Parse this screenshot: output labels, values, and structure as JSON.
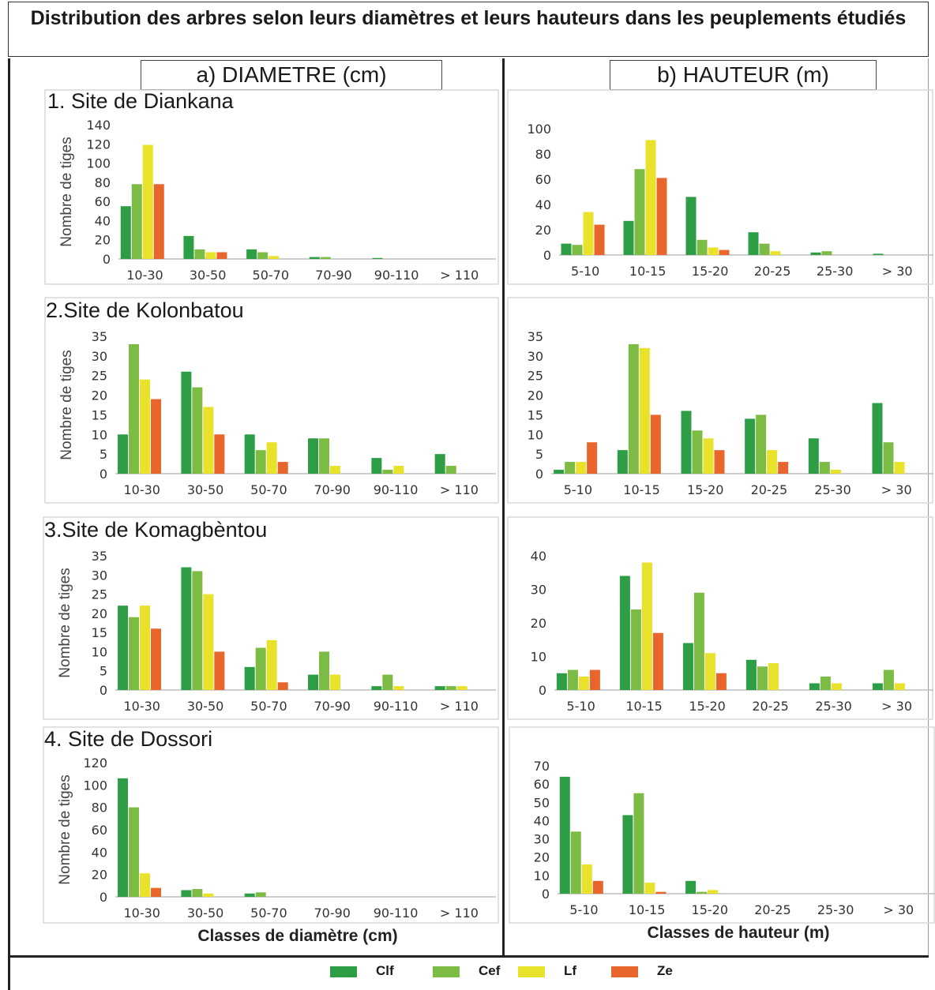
{
  "title": "Distribution des arbres selon leurs diamètres et leurs hauteurs dans les peuplements étudiés",
  "columns": {
    "diameter": "a) DIAMETRE (cm)",
    "height": "b) HAUTEUR (m)"
  },
  "sites": [
    "1. Site de Diankana",
    "2.Site de Kolonbatou",
    "3.Site de Komagbèntou",
    "4. Site de Dossori"
  ],
  "ylabel": "Nombre de tiges",
  "xlabels": {
    "diameter": "Classes de diamètre (cm)",
    "height": "Classes de hauteur (m)"
  },
  "colors": {
    "Clf": "#2e9e46",
    "Cef": "#7cbc45",
    "Lf": "#e8e22a",
    "Ze": "#e8652c"
  },
  "legend": [
    "Clf",
    "Cef",
    "Lf",
    "Ze"
  ],
  "chart_data": [
    {
      "type": "bar",
      "site": "1. Site de Diankana",
      "variable": "diameter",
      "categories": [
        "10-30",
        "30-50",
        "50-70",
        "70-90",
        "90-110",
        "> 110"
      ],
      "ylim": [
        0,
        140
      ],
      "yticks": [
        0,
        20,
        40,
        60,
        80,
        100,
        120,
        140
      ],
      "series": [
        {
          "name": "Clf",
          "values": [
            55,
            24,
            10,
            2,
            1,
            0
          ]
        },
        {
          "name": "Cef",
          "values": [
            78,
            10,
            7,
            2,
            0,
            0
          ]
        },
        {
          "name": "Lf",
          "values": [
            119,
            7,
            3,
            0,
            0,
            0
          ]
        },
        {
          "name": "Ze",
          "values": [
            78,
            7,
            0,
            0,
            0,
            0
          ]
        }
      ]
    },
    {
      "type": "bar",
      "site": "1. Site de Diankana",
      "variable": "height",
      "categories": [
        "5-10",
        "10-15",
        "15-20",
        "20-25",
        "25-30",
        "> 30"
      ],
      "ylim": [
        0,
        100
      ],
      "yticks": [
        0,
        20,
        40,
        60,
        80,
        100
      ],
      "series": [
        {
          "name": "Clf",
          "values": [
            9,
            27,
            46,
            18,
            2,
            1
          ]
        },
        {
          "name": "Cef",
          "values": [
            8,
            68,
            12,
            9,
            3,
            0
          ]
        },
        {
          "name": "Lf",
          "values": [
            34,
            91,
            6,
            3,
            0,
            0
          ]
        },
        {
          "name": "Ze",
          "values": [
            24,
            61,
            4,
            0,
            0,
            0
          ]
        }
      ]
    },
    {
      "type": "bar",
      "site": "2.Site de Kolonbatou",
      "variable": "diameter",
      "categories": [
        "10-30",
        "30-50",
        "50-70",
        "70-90",
        "90-110",
        "> 110"
      ],
      "ylim": [
        0,
        35
      ],
      "yticks": [
        0,
        5,
        10,
        15,
        20,
        25,
        30,
        35
      ],
      "series": [
        {
          "name": "Clf",
          "values": [
            10,
            26,
            10,
            9,
            4,
            5
          ]
        },
        {
          "name": "Cef",
          "values": [
            33,
            22,
            6,
            9,
            1,
            2
          ]
        },
        {
          "name": "Lf",
          "values": [
            24,
            17,
            8,
            2,
            2,
            0
          ]
        },
        {
          "name": "Ze",
          "values": [
            19,
            10,
            3,
            0,
            0,
            0
          ]
        }
      ]
    },
    {
      "type": "bar",
      "site": "2.Site de Kolonbatou",
      "variable": "height",
      "categories": [
        "5-10",
        "10-15",
        "15-20",
        "20-25",
        "25-30",
        "> 30"
      ],
      "ylim": [
        0,
        35
      ],
      "yticks": [
        0,
        5,
        10,
        15,
        20,
        25,
        30,
        35
      ],
      "series": [
        {
          "name": "Clf",
          "values": [
            1,
            6,
            16,
            14,
            9,
            18
          ]
        },
        {
          "name": "Cef",
          "values": [
            3,
            33,
            11,
            15,
            3,
            8
          ]
        },
        {
          "name": "Lf",
          "values": [
            3,
            32,
            9,
            6,
            1,
            3
          ]
        },
        {
          "name": "Ze",
          "values": [
            8,
            15,
            6,
            3,
            0,
            0
          ]
        }
      ]
    },
    {
      "type": "bar",
      "site": "3.Site de Komagbèntou",
      "variable": "diameter",
      "categories": [
        "10-30",
        "30-50",
        "50-70",
        "70-90",
        "90-110",
        "> 110"
      ],
      "ylim": [
        0,
        35
      ],
      "yticks": [
        0,
        5,
        10,
        15,
        20,
        25,
        30,
        35
      ],
      "series": [
        {
          "name": "Clf",
          "values": [
            22,
            32,
            6,
            4,
            1,
            1
          ]
        },
        {
          "name": "Cef",
          "values": [
            19,
            31,
            11,
            10,
            4,
            1
          ]
        },
        {
          "name": "Lf",
          "values": [
            22,
            25,
            13,
            4,
            1,
            1
          ]
        },
        {
          "name": "Ze",
          "values": [
            16,
            10,
            2,
            0,
            0,
            0
          ]
        }
      ]
    },
    {
      "type": "bar",
      "site": "3.Site de Komagbèntou",
      "variable": "height",
      "categories": [
        "5-10",
        "10-15",
        "15-20",
        "20-25",
        "25-30",
        "> 30"
      ],
      "ylim": [
        0,
        40
      ],
      "yticks": [
        0,
        10,
        20,
        30,
        40
      ],
      "series": [
        {
          "name": "Clf",
          "values": [
            5,
            34,
            14,
            9,
            2,
            2
          ]
        },
        {
          "name": "Cef",
          "values": [
            6,
            24,
            29,
            7,
            4,
            6
          ]
        },
        {
          "name": "Lf",
          "values": [
            4,
            38,
            11,
            8,
            2,
            2
          ]
        },
        {
          "name": "Ze",
          "values": [
            6,
            17,
            5,
            0,
            0,
            0
          ]
        }
      ]
    },
    {
      "type": "bar",
      "site": "4. Site de Dossori",
      "variable": "diameter",
      "categories": [
        "10-30",
        "30-50",
        "50-70",
        "70-90",
        "90-110",
        "> 110"
      ],
      "ylim": [
        0,
        120
      ],
      "yticks": [
        0,
        20,
        40,
        60,
        80,
        100,
        120
      ],
      "series": [
        {
          "name": "Clf",
          "values": [
            106,
            6,
            3,
            0,
            0,
            0
          ]
        },
        {
          "name": "Cef",
          "values": [
            80,
            7,
            4,
            0,
            0,
            0
          ]
        },
        {
          "name": "Lf",
          "values": [
            21,
            3,
            0,
            0,
            0,
            0
          ]
        },
        {
          "name": "Ze",
          "values": [
            8,
            0,
            0,
            0,
            0,
            0
          ]
        }
      ]
    },
    {
      "type": "bar",
      "site": "4. Site de Dossori",
      "variable": "height",
      "categories": [
        "5-10",
        "10-15",
        "15-20",
        "20-25",
        "25-30",
        "> 30"
      ],
      "ylim": [
        0,
        70
      ],
      "yticks": [
        0,
        10,
        20,
        30,
        40,
        50,
        60,
        70
      ],
      "series": [
        {
          "name": "Clf",
          "values": [
            64,
            43,
            7,
            0,
            0,
            0
          ]
        },
        {
          "name": "Cef",
          "values": [
            34,
            55,
            1,
            0,
            0,
            0
          ]
        },
        {
          "name": "Lf",
          "values": [
            16,
            6,
            2,
            0,
            0,
            0
          ]
        },
        {
          "name": "Ze",
          "values": [
            7,
            1,
            0,
            0,
            0,
            0
          ]
        }
      ]
    }
  ]
}
